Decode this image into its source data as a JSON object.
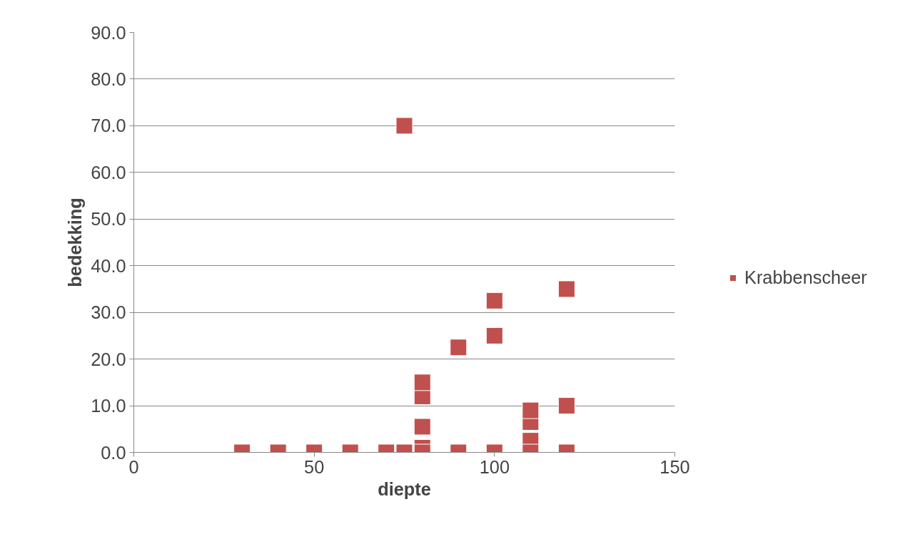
{
  "chart_data": {
    "type": "scatter",
    "xlabel": "diepte",
    "ylabel": "bedekking",
    "xlim": [
      0,
      150
    ],
    "xticks": [
      0,
      50,
      100,
      150
    ],
    "ylim": [
      0,
      90
    ],
    "yticks": [
      {
        "value": 0,
        "label": "0.0"
      },
      {
        "value": 10,
        "label": "10.0"
      },
      {
        "value": 20,
        "label": "20.0"
      },
      {
        "value": 30,
        "label": "30.0"
      },
      {
        "value": 40,
        "label": "40.0"
      },
      {
        "value": 50,
        "label": "50.0"
      },
      {
        "value": 60,
        "label": "60.0"
      },
      {
        "value": 70,
        "label": "70.0"
      },
      {
        "value": 80,
        "label": "80.0"
      },
      {
        "value": 90,
        "label": "90.0"
      }
    ],
    "grid": "y",
    "legend": "right",
    "marker": "square",
    "series": [
      {
        "name": "Krabbenscheer",
        "color": "#c0504d",
        "x": [
          30,
          40,
          50,
          60,
          70,
          75,
          75,
          80,
          80,
          80,
          80,
          80,
          90,
          90,
          100,
          100,
          100,
          110,
          110,
          110,
          110,
          120,
          120,
          120
        ],
        "values": [
          0,
          0,
          0,
          0,
          0,
          0,
          70,
          1,
          0,
          5.5,
          12,
          15,
          0,
          22.5,
          0,
          25,
          32.5,
          2.5,
          0,
          6.5,
          9,
          0,
          10,
          35
        ]
      }
    ]
  }
}
